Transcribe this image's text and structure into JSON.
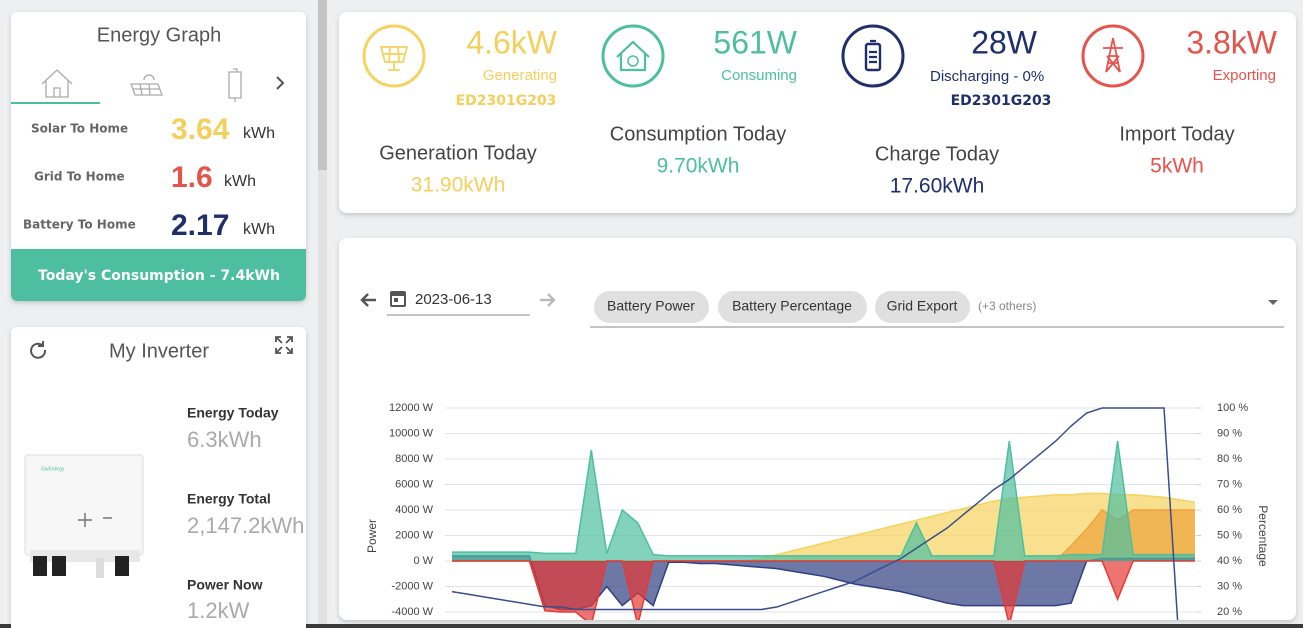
{
  "energy_graph": {
    "title": "Energy Graph",
    "rows": [
      {
        "label": "Solar To Home",
        "value": "3.64",
        "unit": "kWh"
      },
      {
        "label": "Grid To Home",
        "value": "1.6",
        "unit": "kWh"
      },
      {
        "label": "Battery To Home",
        "value": "2.17",
        "unit": "kWh"
      }
    ],
    "footer": "Today's Consumption - 7.4kWh"
  },
  "inverter": {
    "title": "My Inverter",
    "brand": "GivEnergy",
    "stats": [
      {
        "label": "Energy Today",
        "value": "6.3kWh"
      },
      {
        "label": "Energy Total",
        "value": "2,147.2kWh"
      },
      {
        "label": "Power Now",
        "value": "1.2kW"
      }
    ]
  },
  "summary": {
    "cards": [
      {
        "value": "4.6kW",
        "status": "Generating",
        "serial": "ED2301G203",
        "today_label": "Generation Today",
        "today_value": "31.90kWh"
      },
      {
        "value": "561W",
        "status": "Consuming",
        "today_label": "Consumption Today",
        "today_value": "9.70kWh"
      },
      {
        "value": "28W",
        "status": "Discharging - 0%",
        "serial": "ED2301G203",
        "today_label": "Charge Today",
        "today_value": "17.60kWh"
      },
      {
        "value": "3.8kW",
        "status": "Exporting",
        "today_label": "Import Today",
        "today_value": "5kWh"
      }
    ]
  },
  "controls": {
    "date": "2023-06-13",
    "chips": [
      "Battery Power",
      "Battery Percentage",
      "Grid Export"
    ],
    "more": "(+3 others)"
  },
  "chart_data": {
    "type": "area",
    "ylabel": "Power",
    "y2label": "Percentage",
    "ylim": [
      -4000,
      12000
    ],
    "yticks": [
      {
        "value": -4000,
        "label": "-4000 W"
      },
      {
        "value": -2000,
        "label": "-2000 W"
      },
      {
        "value": 0,
        "label": "0 W"
      },
      {
        "value": 2000,
        "label": "2000 W"
      },
      {
        "value": 4000,
        "label": "4000 W"
      },
      {
        "value": 6000,
        "label": "6000 W"
      },
      {
        "value": 8000,
        "label": "8000 W"
      },
      {
        "value": 10000,
        "label": "10000 W"
      },
      {
        "value": 12000,
        "label": "12000 W"
      }
    ],
    "y2lim": [
      20,
      100
    ],
    "y2ticks": [
      {
        "value": 20,
        "label": "20 %"
      },
      {
        "value": 30,
        "label": "30 %"
      },
      {
        "value": 40,
        "label": "40 %"
      },
      {
        "value": 50,
        "label": "50 %"
      },
      {
        "value": 60,
        "label": "60 %"
      },
      {
        "value": 70,
        "label": "70 %"
      },
      {
        "value": 80,
        "label": "80 %"
      },
      {
        "value": 90,
        "label": "90 %"
      },
      {
        "value": 100,
        "label": "100 %"
      }
    ],
    "grid": true,
    "series": [
      {
        "kind": "area",
        "color": "#f5d35e",
        "values": [
          0,
          0,
          0,
          0,
          0,
          0,
          0,
          0,
          0,
          0,
          0,
          0,
          0,
          0,
          0,
          0,
          0,
          0,
          0,
          0,
          200,
          500,
          800,
          1100,
          1400,
          1700,
          2000,
          2300,
          2600,
          2900,
          3200,
          3500,
          3800,
          4100,
          4400,
          4700,
          4900,
          5000,
          5100,
          5200,
          5200,
          5300,
          5300,
          5200,
          5200,
          5100,
          5000,
          4800,
          4600
        ]
      },
      {
        "kind": "area",
        "color": "#f0a23c",
        "values": [
          0,
          0,
          0,
          0,
          0,
          0,
          0,
          0,
          0,
          0,
          0,
          0,
          0,
          0,
          0,
          0,
          0,
          0,
          0,
          0,
          0,
          0,
          0,
          0,
          0,
          0,
          0,
          0,
          0,
          0,
          0,
          0,
          0,
          0,
          0,
          0,
          0,
          0,
          0,
          0,
          1200,
          2500,
          4000,
          3200,
          4000,
          4000,
          4000,
          4000,
          4000
        ]
      },
      {
        "name": "Battery Power",
        "kind": "area",
        "color": "#2f3f82",
        "values": [
          400,
          400,
          400,
          400,
          400,
          400,
          -3500,
          -3800,
          -3800,
          -3500,
          -2000,
          -3500,
          -2500,
          -3500,
          -100,
          -100,
          -200,
          -200,
          -300,
          -400,
          -500,
          -600,
          -800,
          -1000,
          -1200,
          -1500,
          -1800,
          -2000,
          -2200,
          -2400,
          -2700,
          -3000,
          -3300,
          -3500,
          -3500,
          -3500,
          -3500,
          -3500,
          -3500,
          -3500,
          -3300,
          0,
          200,
          200,
          200,
          200,
          200,
          200,
          200
        ]
      },
      {
        "kind": "area",
        "color": "#4dbf9f",
        "values": [
          700,
          700,
          700,
          700,
          700,
          700,
          600,
          600,
          600,
          8700,
          600,
          4000,
          3000,
          500,
          400,
          400,
          400,
          400,
          400,
          400,
          400,
          400,
          400,
          400,
          400,
          400,
          400,
          400,
          400,
          400,
          3000,
          400,
          400,
          400,
          400,
          400,
          9400,
          400,
          400,
          400,
          500,
          500,
          500,
          9400,
          500,
          500,
          500,
          500,
          500
        ]
      },
      {
        "name": "Grid Export",
        "kind": "area",
        "color": "#e53935",
        "values": [
          0,
          0,
          0,
          0,
          0,
          0,
          -3900,
          -4000,
          -4000,
          -5000,
          0,
          0,
          -5000,
          0,
          0,
          0,
          0,
          0,
          0,
          0,
          0,
          0,
          0,
          0,
          0,
          0,
          0,
          0,
          0,
          0,
          0,
          0,
          0,
          0,
          0,
          0,
          -5000,
          0,
          0,
          0,
          0,
          0,
          0,
          -3000,
          0,
          0,
          0,
          0,
          0
        ]
      },
      {
        "name": "Battery Percentage",
        "kind": "line",
        "axis": "y2",
        "color": "#3b4d8c",
        "values": [
          28,
          27,
          26,
          25,
          24,
          23,
          22,
          22,
          21,
          21,
          21,
          21,
          21,
          21,
          21,
          21,
          21,
          21,
          21,
          21,
          21,
          22,
          24,
          26,
          28,
          30,
          32,
          35,
          38,
          41,
          45,
          49,
          53,
          58,
          63,
          68,
          72,
          77,
          82,
          87,
          93,
          98,
          100,
          100,
          100,
          100,
          100,
          5,
          null
        ]
      }
    ]
  }
}
